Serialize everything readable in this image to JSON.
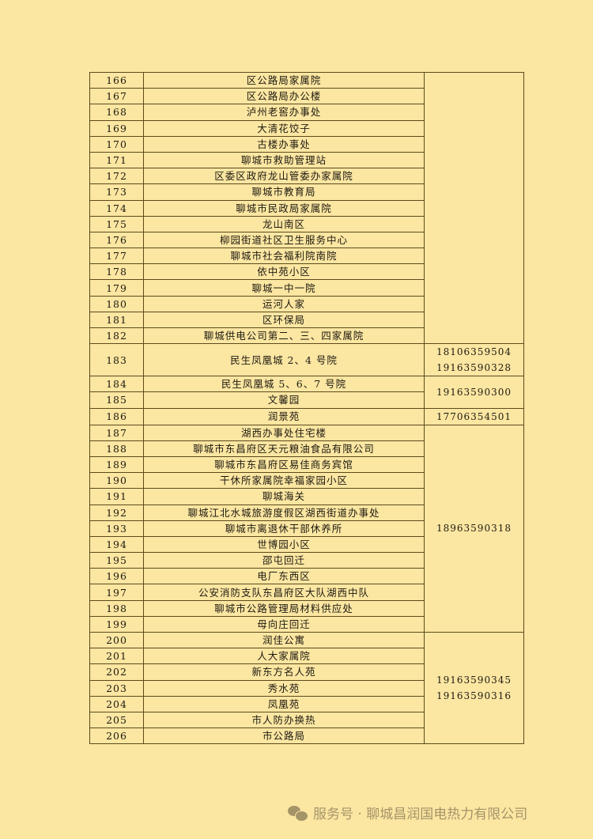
{
  "table": {
    "rows": [
      {
        "no": "166",
        "name": "区公路局家属院"
      },
      {
        "no": "167",
        "name": "区公路局办公楼"
      },
      {
        "no": "168",
        "name": "泸州老窖办事处"
      },
      {
        "no": "169",
        "name": "大清花饺子"
      },
      {
        "no": "170",
        "name": "古楼办事处"
      },
      {
        "no": "171",
        "name": "聊城市救助管理站"
      },
      {
        "no": "172",
        "name": "区委区政府龙山管委办家属院"
      },
      {
        "no": "173",
        "name": "聊城市教育局"
      },
      {
        "no": "174",
        "name": "聊城市民政局家属院"
      },
      {
        "no": "175",
        "name": "龙山南区"
      },
      {
        "no": "176",
        "name": "柳园街道社区卫生服务中心"
      },
      {
        "no": "177",
        "name": "聊城市社会福利院南院"
      },
      {
        "no": "178",
        "name": "依中苑小区"
      },
      {
        "no": "179",
        "name": "聊城一中一院"
      },
      {
        "no": "180",
        "name": "运河人家"
      },
      {
        "no": "181",
        "name": "区环保局"
      },
      {
        "no": "182",
        "name": "聊城供电公司第二、三、四家属院"
      },
      {
        "no": "183",
        "name": "民生凤凰城 2、4 号院"
      },
      {
        "no": "184",
        "name": "民生凤凰城 5、6、7 号院"
      },
      {
        "no": "185",
        "name": "文馨园"
      },
      {
        "no": "186",
        "name": "润景苑"
      },
      {
        "no": "187",
        "name": "湖西办事处住宅楼"
      },
      {
        "no": "188",
        "name": "聊城市东昌府区天元粮油食品有限公司"
      },
      {
        "no": "189",
        "name": "聊城市东昌府区易佳商务宾馆"
      },
      {
        "no": "190",
        "name": "干休所家属院幸福家园小区"
      },
      {
        "no": "191",
        "name": "聊城海关"
      },
      {
        "no": "192",
        "name": "聊城江北水城旅游度假区湖西街道办事处"
      },
      {
        "no": "193",
        "name": "聊城市离退休干部休养所"
      },
      {
        "no": "194",
        "name": "世博园小区"
      },
      {
        "no": "195",
        "name": "邵屯回迁"
      },
      {
        "no": "196",
        "name": "电厂东西区"
      },
      {
        "no": "197",
        "name": "公安消防支队东昌府区大队湖西中队"
      },
      {
        "no": "198",
        "name": "聊城市公路管理局材料供应处"
      },
      {
        "no": "199",
        "name": "母向庄回迁"
      },
      {
        "no": "200",
        "name": "润佳公寓"
      },
      {
        "no": "201",
        "name": "人大家属院"
      },
      {
        "no": "202",
        "name": "新东方名人苑"
      },
      {
        "no": "203",
        "name": "秀水苑"
      },
      {
        "no": "204",
        "name": "凤凰苑"
      },
      {
        "no": "205",
        "name": "市人防办换热"
      },
      {
        "no": "206",
        "name": "市公路局"
      }
    ],
    "phone_groups": [
      {
        "from": "166",
        "to": "182",
        "phones": []
      },
      {
        "from": "183",
        "to": "183",
        "phones": [
          "18106359504",
          "19163590328"
        ]
      },
      {
        "from": "184",
        "to": "185",
        "phones": [
          "19163590300"
        ]
      },
      {
        "from": "186",
        "to": "186",
        "phones": [
          "17706354501"
        ]
      },
      {
        "from": "187",
        "to": "199",
        "phones": [
          "18963590318"
        ]
      },
      {
        "from": "200",
        "to": "206",
        "phones": [
          "19163590345",
          "19163590316"
        ]
      }
    ]
  },
  "footer": {
    "icon": "wechat-icon",
    "text": "服务号 · 聊城昌润国电热力有限公司"
  }
}
